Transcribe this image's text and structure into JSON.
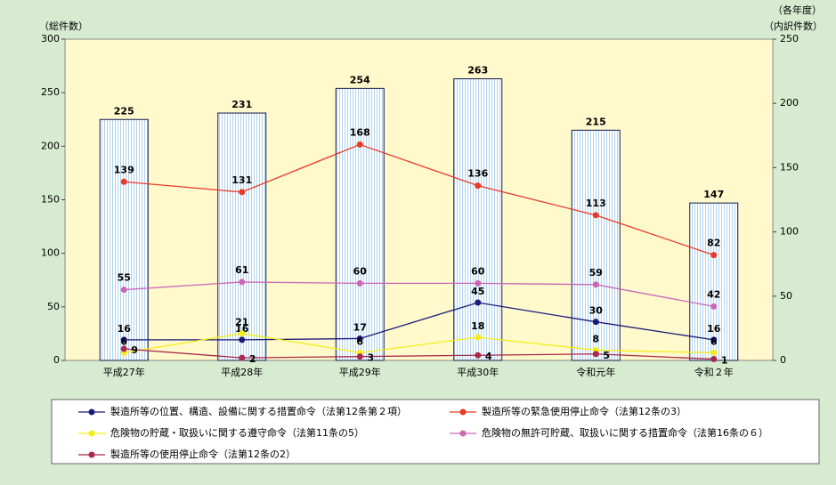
{
  "chart_data": {
    "type": "bar_line",
    "ylabel": "（総件数）",
    "y2label": [
      "（各年度）",
      "（内訳件数）"
    ],
    "categories": [
      "平成27年",
      "平成28年",
      "平成29年",
      "平成30年",
      "令和元年",
      "令和２年"
    ],
    "ylim": [
      0,
      300
    ],
    "yticks": [
      0,
      50,
      100,
      150,
      200,
      250,
      300
    ],
    "y2lim": [
      0,
      250
    ],
    "y2ticks": [
      0,
      50,
      100,
      150,
      200,
      250
    ],
    "bar": {
      "color": "#aed3ee",
      "values": [
        225,
        231,
        254,
        263,
        215,
        147
      ]
    },
    "series": [
      {
        "name": "製造所等の位置、構造、設備に関する措置命令（法第12条第２項）",
        "color": "#1a1a7a",
        "axis": "y2",
        "values": [
          16,
          16,
          17,
          45,
          30,
          16
        ]
      },
      {
        "name": "製造所等の緊急使用停止命令（法第12条の3）",
        "color": "#e8392a",
        "axis": "y2",
        "values": [
          139,
          131,
          168,
          136,
          113,
          82
        ]
      },
      {
        "name": "危険物の貯蔵・取扱いに関する遵守命令（法第11条の5）",
        "color": "#f5ee1a",
        "axis": "y2",
        "values": [
          6,
          21,
          6,
          18,
          8,
          6
        ]
      },
      {
        "name": "危険物の無許可貯蔵、取扱いに関する措置命令（法第16条の６）",
        "color": "#cc66b8",
        "axis": "y2",
        "values": [
          55,
          61,
          60,
          60,
          59,
          42
        ]
      },
      {
        "name": "製造所等の使用停止命令（法第12条の2）",
        "color": "#a8284e",
        "axis": "y2",
        "values": [
          9,
          2,
          3,
          4,
          5,
          1
        ]
      }
    ]
  }
}
